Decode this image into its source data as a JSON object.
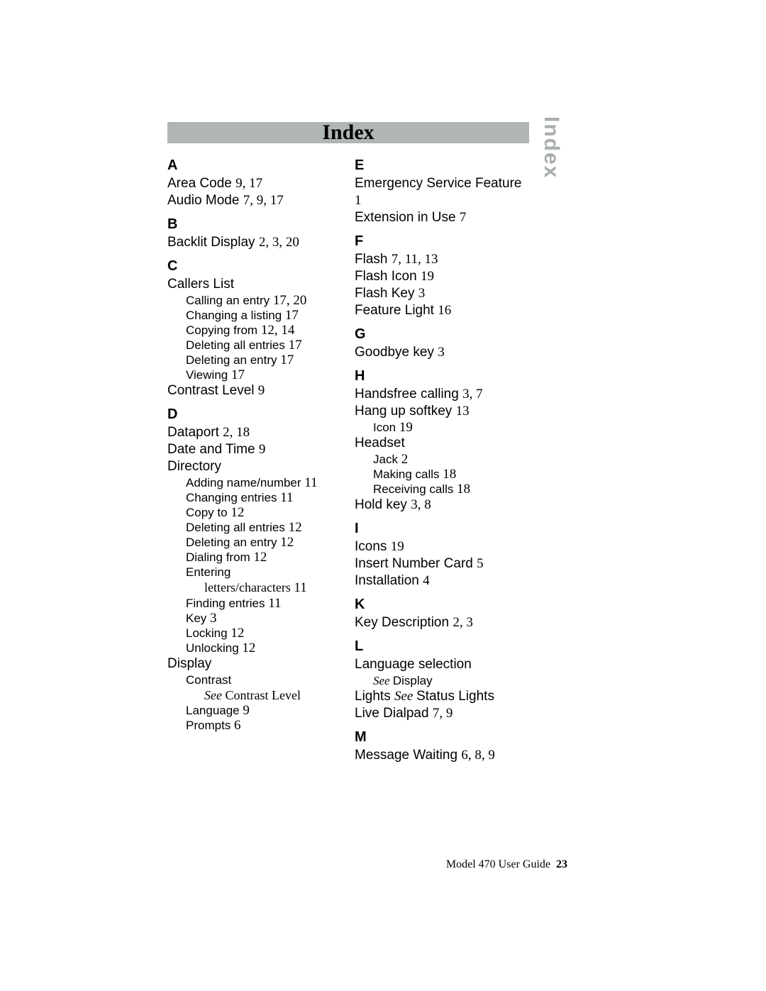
{
  "title": "Index",
  "sideTab": "Index",
  "footer": {
    "text": "Model 470 User Guide",
    "page": "23"
  },
  "leftCol": {
    "A": {
      "letter": "A",
      "items": [
        {
          "text": "Area Code ",
          "pages": "9, 17"
        },
        {
          "text": "Audio Mode ",
          "pages": "7, 9, 17"
        }
      ]
    },
    "B": {
      "letter": "B",
      "items": [
        {
          "text": "Backlit Display ",
          "pages": "2, 3, 20"
        }
      ]
    },
    "C": {
      "letter": "C",
      "callersList": {
        "label": "Callers List",
        "subs": [
          {
            "text": "Calling an entry ",
            "pages": "17, 20"
          },
          {
            "text": "Changing a listing ",
            "pages": "17"
          },
          {
            "text": "Copying from ",
            "pages": "12, 14"
          },
          {
            "text": "Deleting all entries ",
            "pages": "17"
          },
          {
            "text": "Deleting an entry ",
            "pages": "17"
          },
          {
            "text": "Viewing ",
            "pages": "17"
          }
        ]
      },
      "contrast": {
        "text": "Contrast Level ",
        "pages": "9"
      }
    },
    "D": {
      "letter": "D",
      "dataport": {
        "text": "Dataport ",
        "pages": "2, 18"
      },
      "dateTime": {
        "text": "Date and Time ",
        "pages": "9"
      },
      "directory": {
        "label": "Directory",
        "subs": [
          {
            "text": "Adding name/number ",
            "pages": "11"
          },
          {
            "text": "Changing entries ",
            "pages": "11"
          },
          {
            "text": "Copy to ",
            "pages": "12"
          },
          {
            "text": "Deleting all entries ",
            "pages": "12"
          },
          {
            "text": "Deleting an entry ",
            "pages": "12"
          },
          {
            "text": "Dialing from ",
            "pages": "12"
          },
          {
            "text": "Entering",
            "pages": ""
          }
        ],
        "entering2": {
          "text": "letters/characters ",
          "pages": "11"
        },
        "subs2": [
          {
            "text": "Finding entries ",
            "pages": "11"
          },
          {
            "text": "Key ",
            "pages": "3"
          },
          {
            "text": "Locking ",
            "pages": "12"
          },
          {
            "text": "Unlocking ",
            "pages": "12"
          }
        ]
      },
      "display": {
        "label": "Display",
        "contrastSub": "Contrast",
        "seeItalic": "See ",
        "seeRoman": "Contrast Level",
        "subs": [
          {
            "text": "Language ",
            "pages": "9"
          },
          {
            "text": "Prompts ",
            "pages": "6"
          }
        ]
      }
    }
  },
  "rightCol": {
    "E": {
      "letter": "E",
      "items": [
        {
          "text": "Emergency Service Feature ",
          "pages": "1"
        },
        {
          "text": "Extension in Use ",
          "pages": "7"
        }
      ]
    },
    "F": {
      "letter": "F",
      "items": [
        {
          "text": "Flash ",
          "pages": "7, 11, 13"
        },
        {
          "text": "Flash Icon ",
          "pages": "19"
        },
        {
          "text": "Flash Key ",
          "pages": "3"
        },
        {
          "text": "Feature Light ",
          "pages": "16"
        }
      ]
    },
    "G": {
      "letter": "G",
      "items": [
        {
          "text": "Goodbye key ",
          "pages": "3"
        }
      ]
    },
    "H": {
      "letter": "H",
      "handsfree": {
        "text": "Handsfree calling ",
        "pages": "3, 7"
      },
      "hangup": {
        "text": "Hang up softkey ",
        "pages": "13",
        "sub": {
          "text": "Icon ",
          "pages": "19"
        }
      },
      "headset": {
        "label": "Headset",
        "subs": [
          {
            "text": "Jack ",
            "pages": "2"
          },
          {
            "text": "Making calls ",
            "pages": "18"
          },
          {
            "text": "Receiving calls ",
            "pages": "18"
          }
        ]
      },
      "holdkey": {
        "text": "Hold key ",
        "pages": "3, 8"
      }
    },
    "I": {
      "letter": "I",
      "items": [
        {
          "text": "Icons ",
          "pages": "19"
        },
        {
          "text": "Insert Number Card ",
          "pages": "5"
        },
        {
          "text": "Installation ",
          "pages": "4"
        }
      ]
    },
    "K": {
      "letter": "K",
      "items": [
        {
          "text": "Key Description ",
          "pages": "2, 3"
        }
      ]
    },
    "L": {
      "letter": "L",
      "lang": {
        "label": "Language selection",
        "seeItalic": "See ",
        "seeText": "Display"
      },
      "lights": {
        "pre": "Lights ",
        "seeItalic": "See ",
        "post": "Status Lights"
      },
      "live": {
        "text": "Live Dialpad ",
        "pages": "7, 9"
      }
    },
    "M": {
      "letter": "M",
      "items": [
        {
          "text": "Message Waiting ",
          "pages": "6, 8, 9"
        }
      ]
    }
  }
}
